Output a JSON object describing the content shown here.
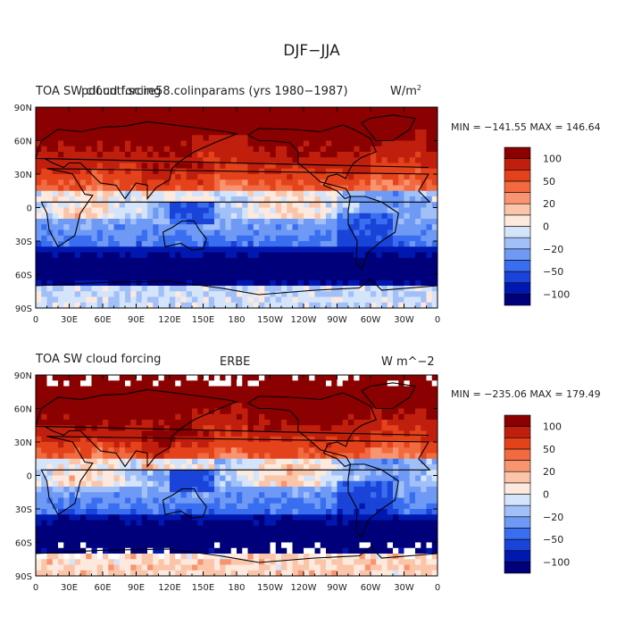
{
  "page": {
    "title": "DJF−JJA"
  },
  "palette": [
    "#00007a",
    "#0018b0",
    "#1a43d8",
    "#3a6ef0",
    "#6e9af5",
    "#a2c0f8",
    "#d4e4fb",
    "#fde9dd",
    "#fbc5aa",
    "#f89470",
    "#f26a3f",
    "#e3421b",
    "#c11f0e",
    "#8b0000"
  ],
  "cbar_labels": [
    "−100",
    "−50",
    "−20",
    "0",
    "20",
    "50",
    "100"
  ],
  "cbar_label_pos": [
    1,
    3,
    5,
    7,
    9,
    11,
    13
  ],
  "chart_data": [
    {
      "type": "heatmap",
      "name": "model",
      "title_left": "TOA SW cloud forcing",
      "title_center": "pdf.cntl.scire58.colinparams (yrs 1980−1987)",
      "title_right": "W/m",
      "title_right_sup": "2",
      "stats": "MIN = −141.55 MAX = 146.64",
      "x_ticks": [
        "0",
        "30E",
        "60E",
        "90E",
        "120E",
        "150E",
        "180",
        "150W",
        "120W",
        "90W",
        "60W",
        "30W",
        "0"
      ],
      "y_ticks": [
        "90N",
        "60N",
        "30N",
        "0",
        "30S",
        "60S",
        "90S"
      ],
      "xlim": [
        0,
        360
      ],
      "ylim": [
        -90,
        90
      ],
      "zlim": [
        -141.55,
        146.64
      ],
      "has_missing": false
    },
    {
      "type": "heatmap",
      "name": "erbe",
      "title_left": "TOA SW cloud forcing",
      "title_center": "ERBE",
      "title_right": "W m^−2",
      "title_right_sup": "",
      "stats": "MIN = −235.06 MAX = 179.49",
      "x_ticks": [
        "0",
        "30E",
        "60E",
        "90E",
        "120E",
        "150E",
        "180",
        "150W",
        "120W",
        "90W",
        "60W",
        "30W",
        "0"
      ],
      "y_ticks": [
        "90N",
        "60N",
        "30N",
        "0",
        "30S",
        "60S",
        "90S"
      ],
      "xlim": [
        0,
        360
      ],
      "ylim": [
        -90,
        90
      ],
      "zlim": [
        -235.06,
        179.49
      ],
      "has_missing": true
    }
  ]
}
